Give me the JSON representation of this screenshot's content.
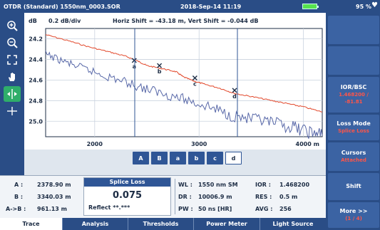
{
  "titlebar": {
    "file": "OTDR (Standard) 1550nm_0003.SOR",
    "datetime": "2018-Sep-14 11:19",
    "battery_pct": "95 %"
  },
  "chart_header": {
    "unit": "dB",
    "scale": "0.2 dB/div",
    "shift": "Horiz Shift = -43.18 m, Vert Shift = -0.044 dB"
  },
  "left_tools": [
    "zoom-in-icon",
    "zoom-out-icon",
    "fit-icon",
    "hand-icon",
    "horizontal-zoom-icon",
    "vertical-zoom-icon"
  ],
  "chart_data": {
    "type": "line",
    "ylabel": "dB",
    "y_ticks": [
      "24.2",
      "24.4",
      "24.6",
      "24.8",
      "25.0"
    ],
    "ylim": [
      24.1,
      25.15
    ],
    "x_ticks": [
      "2000",
      "3000",
      "4000"
    ],
    "x_unit": "m",
    "xlim": [
      1530,
      4180
    ],
    "grid": true,
    "series": [
      {
        "color": "#e2472a",
        "x": [
          1530,
          1750,
          1950,
          2150,
          2300,
          2420,
          2500,
          2650,
          2780,
          2850,
          2950,
          3050,
          3200,
          3340,
          3500,
          3700,
          3850,
          4000,
          4180
        ],
        "y": [
          24.16,
          24.22,
          24.28,
          24.33,
          24.37,
          24.42,
          24.46,
          24.49,
          24.52,
          24.57,
          24.61,
          24.64,
          24.68,
          24.73,
          24.76,
          24.8,
          24.83,
          24.86,
          24.91
        ]
      },
      {
        "color": "#5868a8",
        "x": [
          1530,
          1700,
          1900,
          2100,
          2300,
          2500,
          2700,
          2900,
          3100,
          3300,
          3500,
          3700,
          3900,
          4050,
          4180
        ],
        "y": [
          24.35,
          24.42,
          24.49,
          24.56,
          24.62,
          24.69,
          24.74,
          24.8,
          24.86,
          24.94,
          24.98,
          25.02,
          25.06,
          25.1,
          25.14
        ]
      }
    ],
    "event_markers": [
      {
        "label": "a",
        "x": 2379,
        "y": 24.41
      },
      {
        "label": "b",
        "x": 2620,
        "y": 24.46
      },
      {
        "label": "c",
        "x": 2960,
        "y": 24.58
      },
      {
        "label": "d",
        "x": 3340,
        "y": 24.7
      }
    ]
  },
  "markers": [
    {
      "label": "A",
      "active": false
    },
    {
      "label": "B",
      "active": false
    },
    {
      "label": "a",
      "active": false
    },
    {
      "label": "b",
      "active": false
    },
    {
      "label": "c",
      "active": false
    },
    {
      "label": "d",
      "active": true
    }
  ],
  "info": {
    "a_label": "A :",
    "a_value": "2378.90 m",
    "b_label": "B :",
    "b_value": "3340.03 m",
    "ab_label": "A->B :",
    "ab_value": "961.13 m",
    "splice_header": "Splice Loss",
    "splice_value": "0.075",
    "reflect": "Reflect **.***",
    "wl_label": "WL :",
    "wl_value": "1550 nm SM",
    "dr_label": "DR :",
    "dr_value": "10006.9 m",
    "pw_label": "PW :",
    "pw_value": "50 ns [HR]",
    "ior_label": "IOR :",
    "ior_value": "1.468200",
    "res_label": "RES :",
    "res_value": "0.5 m",
    "avg_label": "AVG :",
    "avg_value": "256"
  },
  "right_panel": {
    "ior_title": "IOR/BSC",
    "ior_sub1": "1.468200 /",
    "ior_sub2": "-81.81",
    "loss_title": "Loss Mode",
    "loss_sub": "Splice Loss",
    "cursors_title": "Cursors",
    "cursors_sub": "Attached",
    "shift_title": "Shift",
    "more_title": "More >>",
    "more_sub": "(1 / 4)"
  },
  "tabs": [
    "Trace",
    "Analysis",
    "Thresholds",
    "Power Meter",
    "Light Source"
  ],
  "active_tab": "Trace"
}
